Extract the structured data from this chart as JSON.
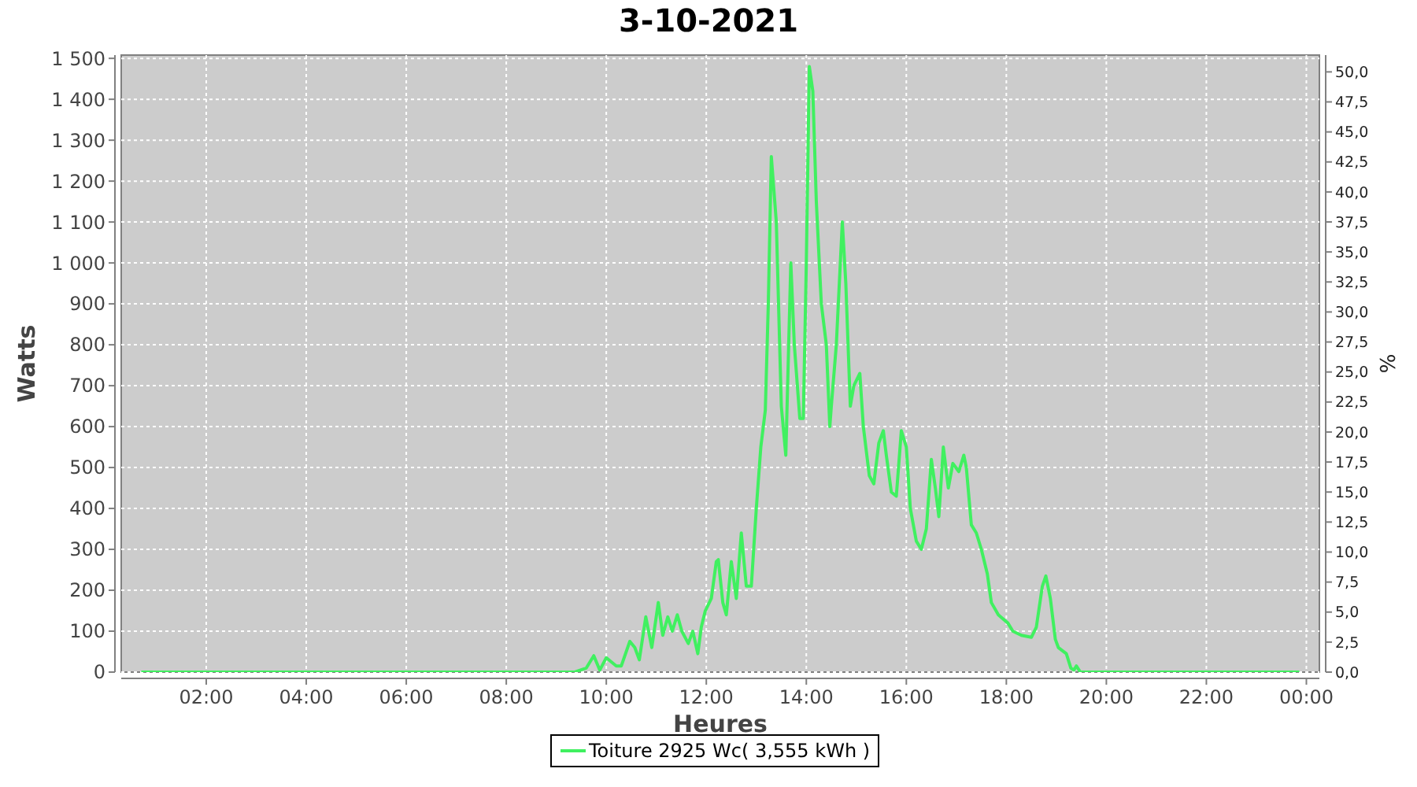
{
  "chart_data": {
    "type": "line",
    "title": "3-10-2021",
    "xlabel": "Heures",
    "ylabel": "Watts",
    "y2label": "%",
    "xlim": [
      0.3,
      24.26
    ],
    "xticks": [
      {
        "value": 2,
        "label": "02:00"
      },
      {
        "value": 4,
        "label": "04:00"
      },
      {
        "value": 6,
        "label": "06:00"
      },
      {
        "value": 8,
        "label": "08:00"
      },
      {
        "value": 10,
        "label": "10:00"
      },
      {
        "value": 12,
        "label": "12:00"
      },
      {
        "value": 14,
        "label": "14:00"
      },
      {
        "value": 16,
        "label": "16:00"
      },
      {
        "value": 18,
        "label": "18:00"
      },
      {
        "value": 20,
        "label": "20:00"
      },
      {
        "value": 22,
        "label": "22:00"
      },
      {
        "value": 24,
        "label": "00:00"
      }
    ],
    "ylim": [
      0,
      1508
    ],
    "yticks": [
      0,
      100,
      200,
      300,
      400,
      500,
      600,
      700,
      800,
      900,
      {
        "value": 1000,
        "label": "1 000"
      },
      {
        "value": 1100,
        "label": "1 100"
      },
      {
        "value": 1200,
        "label": "1 200"
      },
      {
        "value": 1300,
        "label": "1 300"
      },
      {
        "value": 1400,
        "label": "1 400"
      },
      {
        "value": 1500,
        "label": "1 500"
      }
    ],
    "y2lim": [
      0,
      51.4
    ],
    "y2ticks": [
      {
        "value": 0,
        "label": "0,0"
      },
      {
        "value": 2.5,
        "label": "2,5"
      },
      {
        "value": 5,
        "label": "5,0"
      },
      {
        "value": 7.5,
        "label": "7,5"
      },
      {
        "value": 10,
        "label": "10,0"
      },
      {
        "value": 12.5,
        "label": "12,5"
      },
      {
        "value": 15,
        "label": "15,0"
      },
      {
        "value": 17.5,
        "label": "17,5"
      },
      {
        "value": 20,
        "label": "20,0"
      },
      {
        "value": 22.5,
        "label": "22,5"
      },
      {
        "value": 25,
        "label": "25,0"
      },
      {
        "value": 27.5,
        "label": "27,5"
      },
      {
        "value": 30,
        "label": "30,0"
      },
      {
        "value": 32.5,
        "label": "32,5"
      },
      {
        "value": 35,
        "label": "35,0"
      },
      {
        "value": 37.5,
        "label": "37,5"
      },
      {
        "value": 40,
        "label": "40,0"
      },
      {
        "value": 42.5,
        "label": "42,5"
      },
      {
        "value": 45,
        "label": "45,0"
      },
      {
        "value": 47.5,
        "label": "47,5"
      },
      {
        "value": 50,
        "label": "50,0"
      }
    ],
    "grid": true,
    "legend": "bottom",
    "line_style": "solid",
    "series": [
      {
        "name": "Toiture 2925 Wc( 3,555 kWh )",
        "color": "#40f060",
        "x": [
          0.7,
          9.37,
          9.6,
          9.75,
          9.87,
          10.0,
          10.2,
          10.3,
          10.47,
          10.57,
          10.66,
          10.79,
          10.91,
          11.04,
          11.13,
          11.23,
          11.32,
          11.42,
          11.51,
          11.64,
          11.73,
          11.83,
          11.9,
          11.98,
          12.1,
          12.2,
          12.24,
          12.33,
          12.4,
          12.5,
          12.6,
          12.7,
          12.8,
          12.9,
          13.0,
          13.09,
          13.18,
          13.24,
          13.3,
          13.4,
          13.5,
          13.59,
          13.69,
          13.76,
          13.87,
          13.94,
          14.0,
          14.06,
          14.13,
          14.2,
          14.3,
          14.4,
          14.47,
          14.5,
          14.6,
          14.72,
          14.79,
          14.88,
          14.95,
          15.07,
          15.14,
          15.26,
          15.35,
          15.45,
          15.54,
          15.6,
          15.7,
          15.8,
          15.9,
          16.0,
          16.08,
          16.2,
          16.3,
          16.4,
          16.5,
          16.58,
          16.65,
          16.74,
          16.84,
          16.93,
          17.05,
          17.15,
          17.2,
          17.3,
          17.4,
          17.5,
          17.62,
          17.7,
          17.84,
          18.03,
          18.13,
          18.3,
          18.5,
          18.6,
          18.72,
          18.79,
          18.88,
          18.98,
          19.04,
          19.2,
          19.29,
          19.35,
          19.4,
          19.48,
          23.86
        ],
        "values": [
          0,
          0,
          10,
          40,
          5,
          35,
          15,
          15,
          75,
          60,
          30,
          135,
          60,
          170,
          90,
          135,
          100,
          140,
          100,
          70,
          100,
          45,
          110,
          150,
          180,
          270,
          275,
          170,
          140,
          270,
          180,
          340,
          210,
          210,
          400,
          550,
          640,
          900,
          1260,
          1100,
          650,
          530,
          1000,
          800,
          620,
          620,
          1000,
          1480,
          1420,
          1150,
          900,
          800,
          600,
          650,
          800,
          1100,
          950,
          650,
          700,
          730,
          600,
          480,
          460,
          560,
          590,
          530,
          440,
          430,
          590,
          550,
          400,
          320,
          300,
          350,
          520,
          450,
          380,
          550,
          450,
          510,
          490,
          530,
          500,
          360,
          340,
          300,
          240,
          170,
          140,
          120,
          100,
          90,
          85,
          110,
          210,
          235,
          180,
          80,
          60,
          45,
          10,
          5,
          15,
          0,
          0
        ]
      }
    ]
  }
}
